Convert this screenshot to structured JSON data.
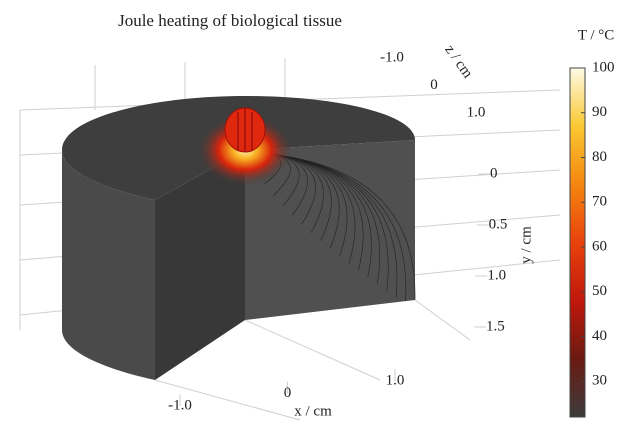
{
  "chart_data": {
    "type": "surface",
    "title": "Joule heating of biological tissue",
    "xlabel": "x / cm",
    "ylabel": "y / cm",
    "zlabel": "z / cm",
    "xticks": [
      {
        "value": -1,
        "label": "-1.0"
      },
      0,
      {
        "value": 1,
        "label": "1.0"
      }
    ],
    "yticks": [
      0,
      0.5,
      {
        "value": 1,
        "label": "1.0"
      },
      1.5
    ],
    "zticks": [
      {
        "value": -1,
        "label": "-1.0"
      },
      0,
      {
        "value": 1,
        "label": "1.0"
      }
    ],
    "colorbar": {
      "label": "T / °C",
      "lim": [
        22,
        100
      ],
      "ticks": [
        30,
        40,
        50,
        60,
        70,
        80,
        90,
        100
      ],
      "colors": [
        "#3c3c3c",
        "#6b1a12",
        "#c0180c",
        "#e8420c",
        "#f5860f",
        "#fac832",
        "#fdfbe6"
      ]
    }
  }
}
